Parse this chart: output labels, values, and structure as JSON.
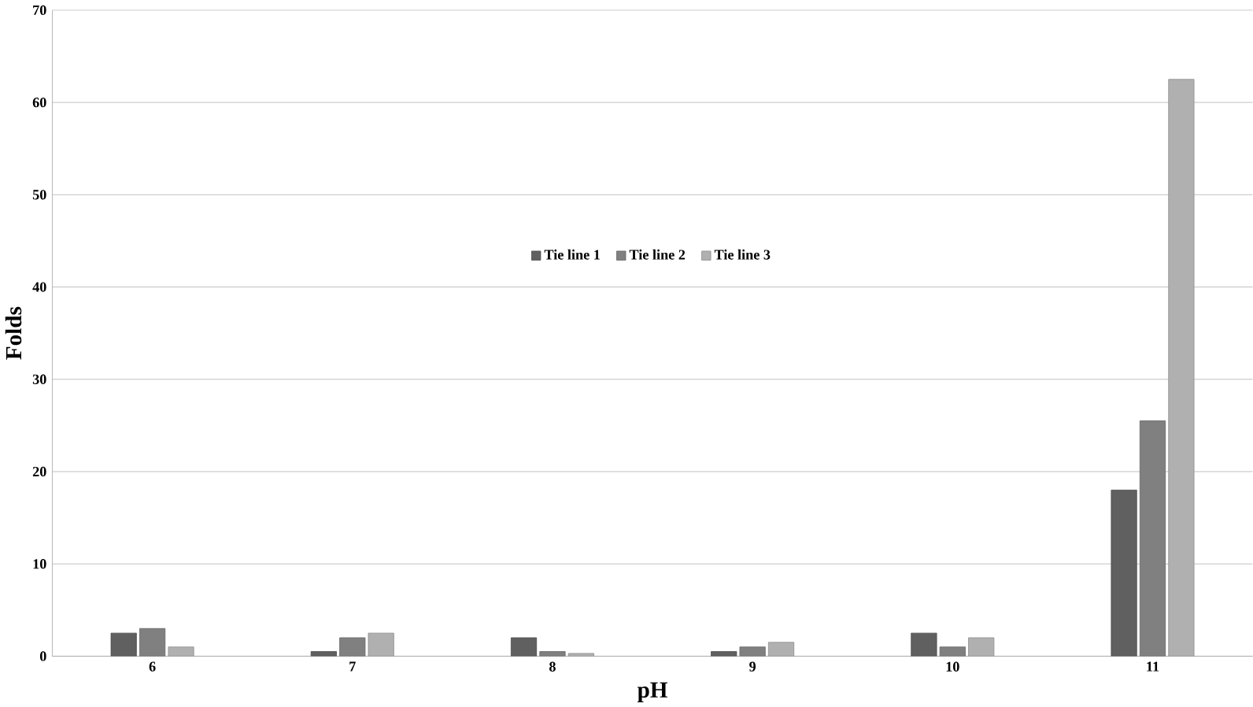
{
  "chart_data": {
    "type": "bar",
    "xlabel": "pH",
    "ylabel": "Folds",
    "categories": [
      "6",
      "7",
      "8",
      "9",
      "10",
      "11"
    ],
    "series": [
      {
        "name": "Tie line 1",
        "color": "#606060",
        "values": [
          2.5,
          0.5,
          2,
          0.5,
          2.5,
          18
        ]
      },
      {
        "name": "Tie line 2",
        "color": "#808080",
        "values": [
          3,
          2,
          0.5,
          1,
          1,
          25.5
        ]
      },
      {
        "name": "Tie line 3",
        "color": "#b0b0b0",
        "values": [
          1,
          2.5,
          0.3,
          1.5,
          2,
          62.5
        ]
      }
    ],
    "ylim": [
      0,
      70
    ],
    "yticks": [
      0,
      10,
      20,
      30,
      40,
      50,
      60,
      70
    ],
    "grid": "y",
    "legend": "top"
  }
}
